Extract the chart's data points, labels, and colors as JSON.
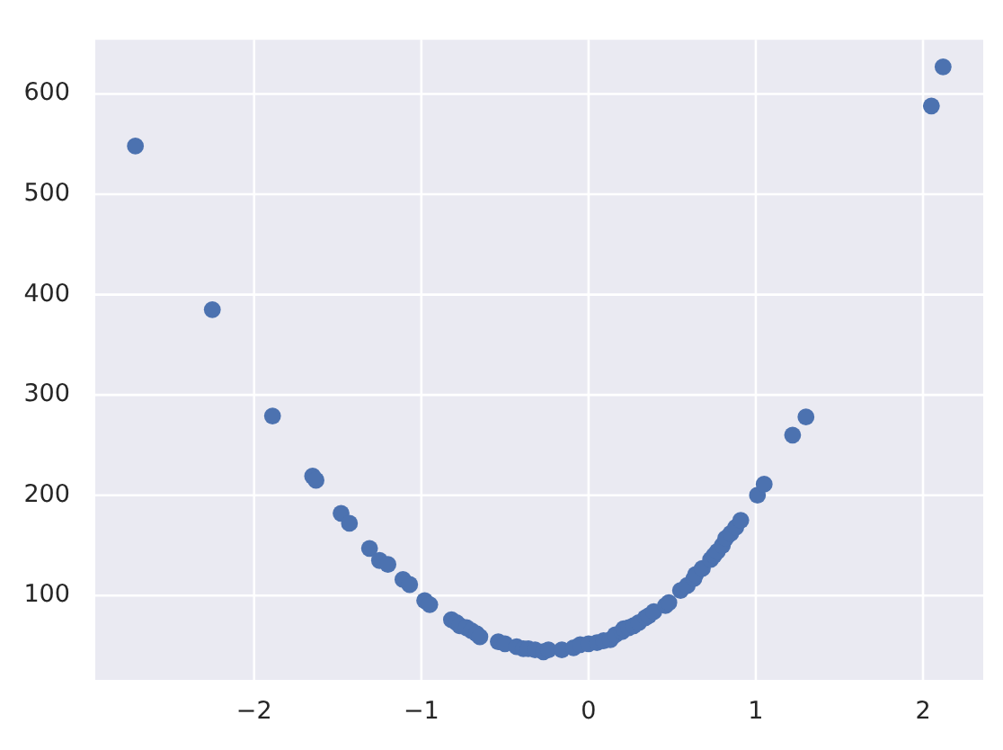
{
  "chart_data": {
    "type": "scatter",
    "x": [
      -2.71,
      -2.25,
      -1.89,
      -1.65,
      -1.63,
      -1.48,
      -1.43,
      -1.31,
      -1.25,
      -1.2,
      -1.11,
      -1.07,
      -0.98,
      -0.95,
      -0.82,
      -0.79,
      -0.77,
      -0.73,
      -0.7,
      -0.67,
      -0.65,
      -0.54,
      -0.5,
      -0.43,
      -0.39,
      -0.36,
      -0.32,
      -0.27,
      -0.24,
      -0.16,
      -0.09,
      -0.05,
      0.0,
      0.05,
      0.09,
      0.13,
      0.16,
      0.2,
      0.21,
      0.24,
      0.27,
      0.3,
      0.34,
      0.36,
      0.39,
      0.46,
      0.48,
      0.55,
      0.59,
      0.63,
      0.64,
      0.68,
      0.73,
      0.75,
      0.77,
      0.8,
      0.82,
      0.85,
      0.88,
      0.91,
      1.01,
      1.05,
      1.22,
      1.3,
      2.05,
      2.12
    ],
    "values": [
      548,
      385,
      279,
      219,
      215,
      182,
      172,
      147,
      135,
      131,
      116,
      111,
      95,
      91,
      76,
      73,
      70,
      68,
      65,
      62,
      59,
      54,
      52,
      49,
      47,
      47,
      46,
      44,
      46,
      46,
      48,
      51,
      52,
      53,
      55,
      56,
      61,
      64,
      67,
      68,
      70,
      73,
      78,
      80,
      84,
      90,
      93,
      105,
      110,
      117,
      121,
      127,
      136,
      140,
      144,
      150,
      157,
      162,
      168,
      175,
      200,
      211,
      260,
      278,
      588,
      627
    ],
    "color": "#4c72b0",
    "xlim": [
      -2.95,
      2.36
    ],
    "ylim": [
      16,
      654
    ],
    "xticks": [
      {
        "value": -2,
        "label": "−2"
      },
      {
        "value": -1,
        "label": "−1"
      },
      0,
      1,
      2
    ],
    "yticks": [
      100,
      200,
      300,
      400,
      500,
      600
    ],
    "grid": true,
    "marker": "circle"
  }
}
